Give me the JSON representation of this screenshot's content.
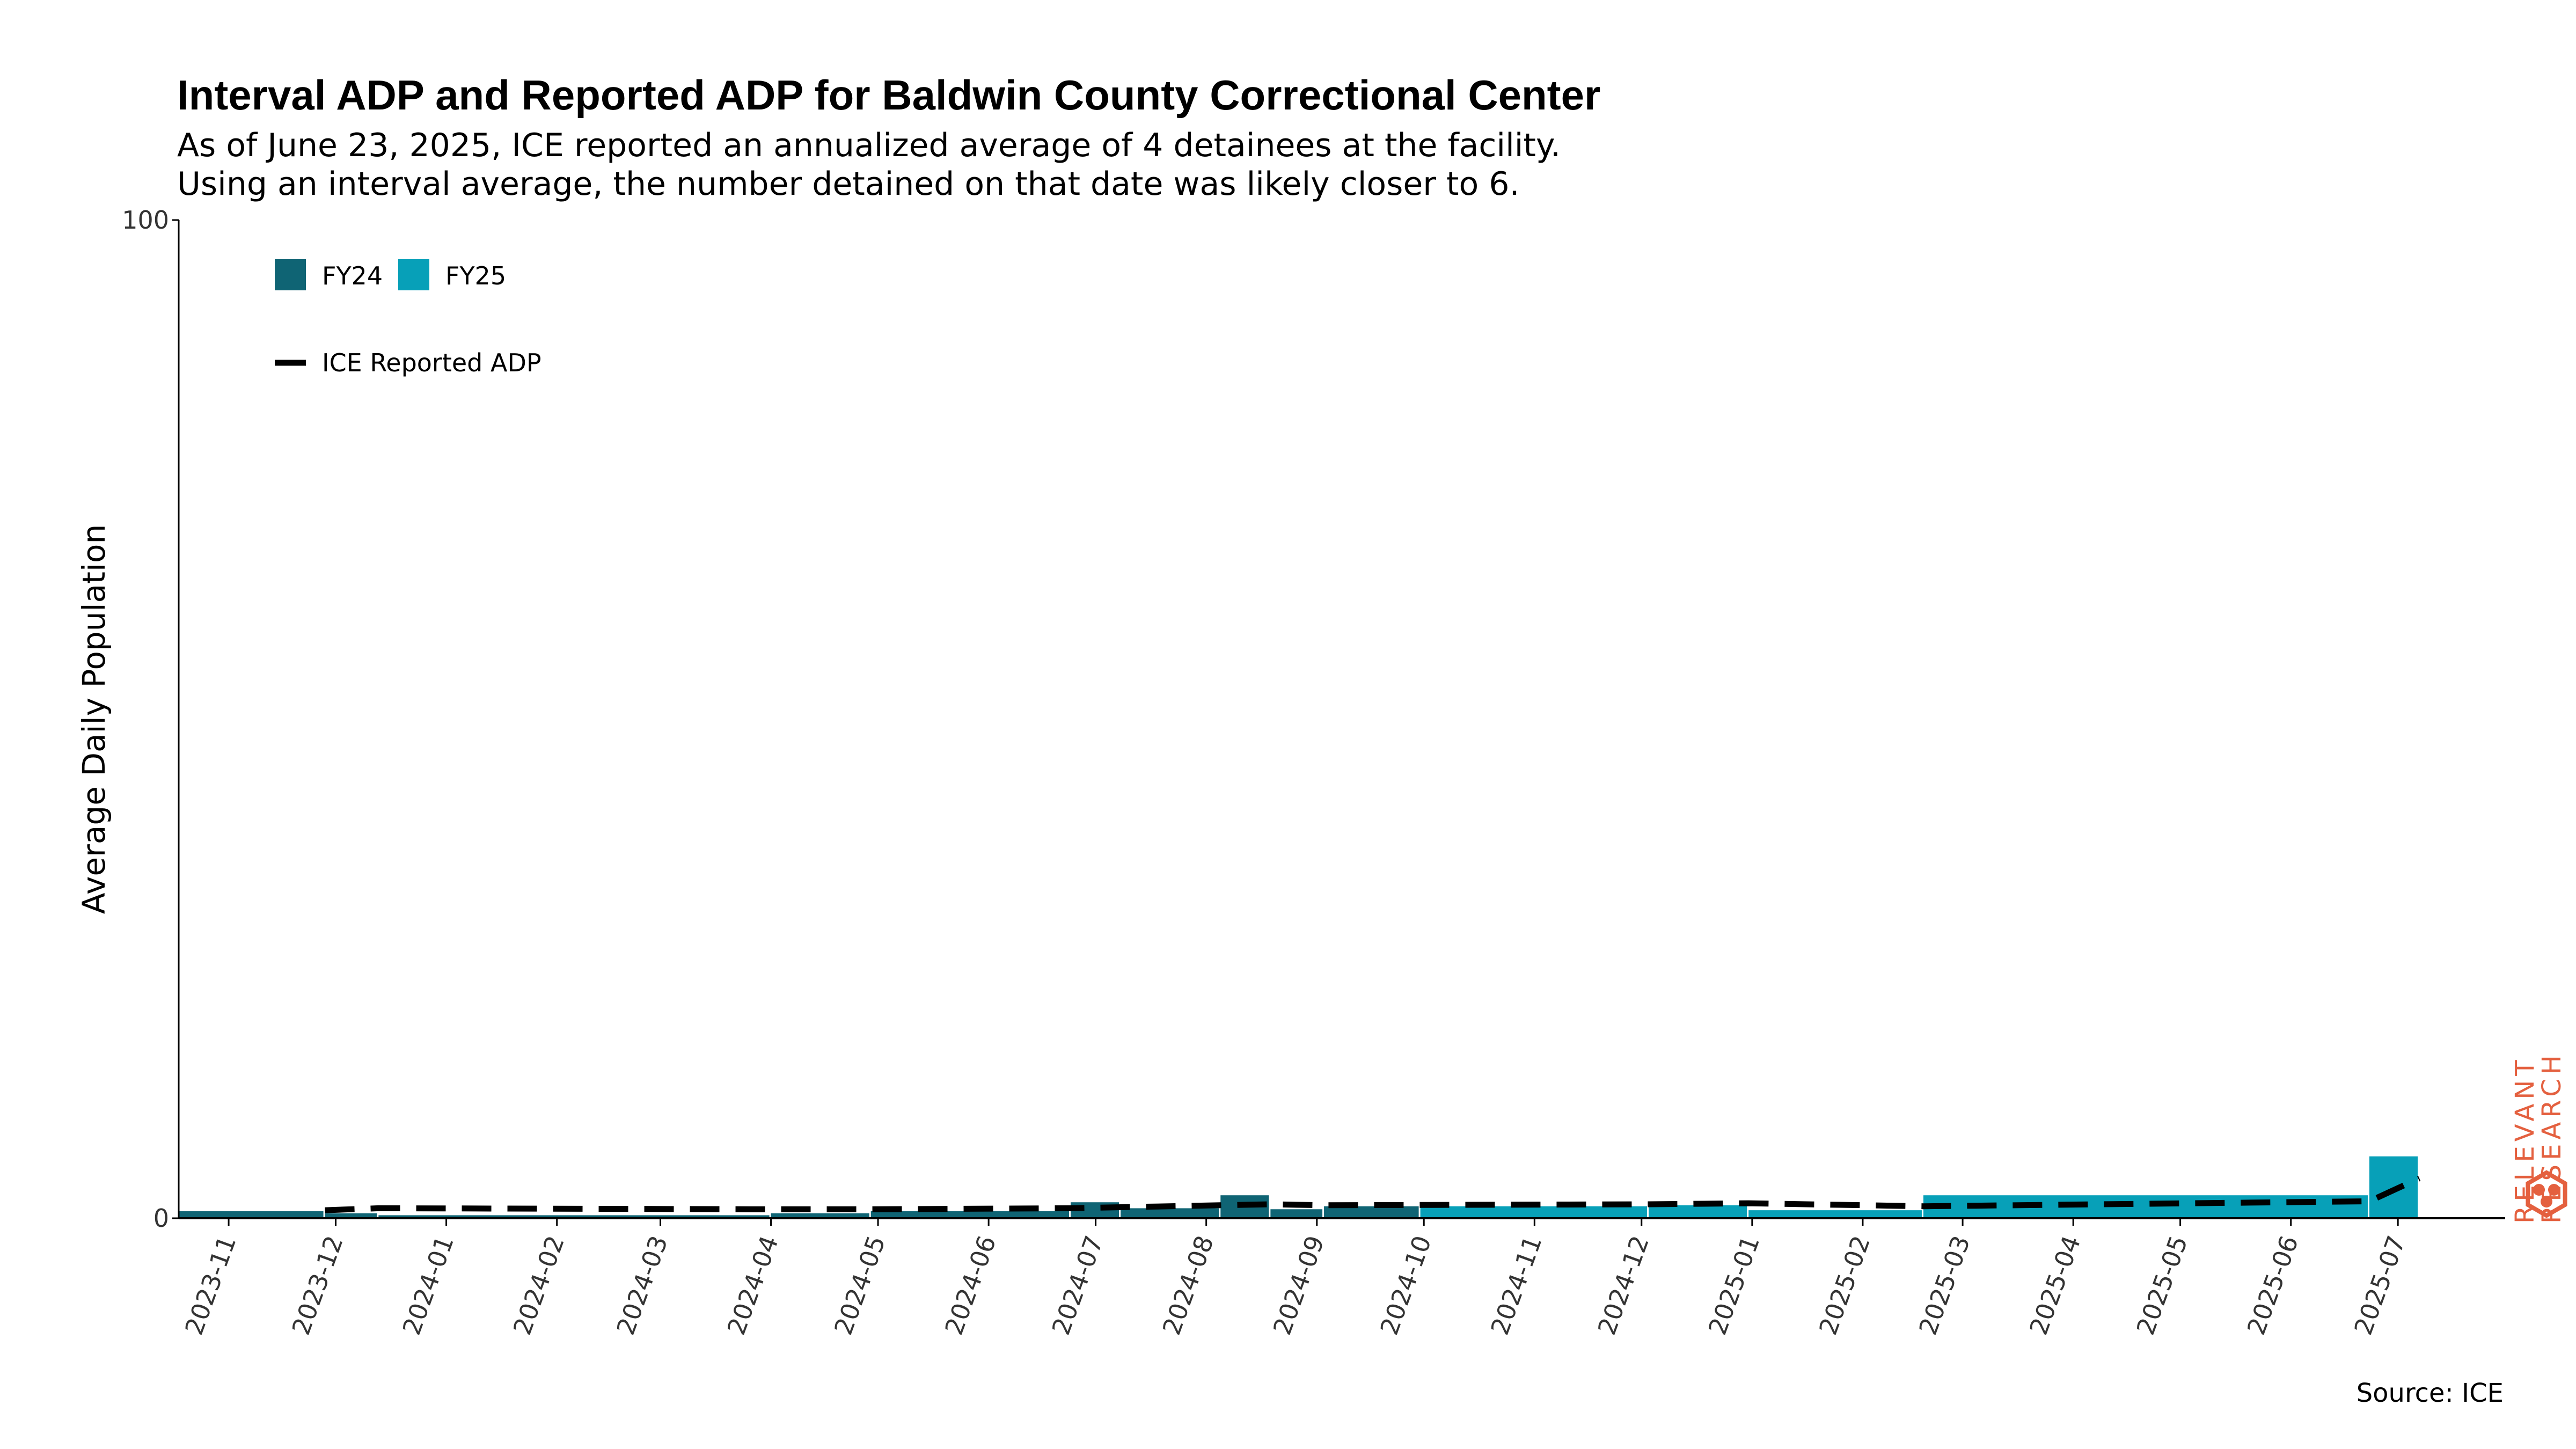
{
  "title": "Interval ADP and Reported ADP for Baldwin County Correctional Center",
  "subtitle_lines": [
    "As of June 23, 2025, ICE reported an annualized average of 4 detainees at the facility.",
    "Using an interval average, the number detained on that date was likely closer to 6."
  ],
  "source": "Source: ICE",
  "logo": {
    "line1": "RELEVANT",
    "line2": "RESEARCH",
    "color": "#e4603f"
  },
  "colors": {
    "FY24": "#0f6474",
    "FY25": "#07a0b8",
    "reported_line": "#000000",
    "axis": "#000000"
  },
  "chart_data": {
    "type": "bar",
    "ylabel": "Average Daily Population",
    "ylim": [
      0,
      100
    ],
    "y_ticks": [
      "0",
      "100"
    ],
    "x_tick_labels": [
      "2023-11",
      "2023-12",
      "2024-01",
      "2024-02",
      "2024-03",
      "2024-04",
      "2024-05",
      "2024-06",
      "2024-07",
      "2024-08",
      "2024-09",
      "2024-10",
      "2024-11",
      "2024-12",
      "2025-01",
      "2025-02",
      "2025-03",
      "2025-04",
      "2025-05",
      "2025-06",
      "2025-07"
    ],
    "x_range": [
      "2023-10-18",
      "2025-07-10"
    ],
    "legend": {
      "position": "top-left",
      "bar_entries": [
        "FY24",
        "FY25"
      ],
      "line_entry": "ICE Reported ADP"
    },
    "interval_bars": [
      {
        "start": "2023-10-18",
        "end": "2023-11-28",
        "value": 0.7,
        "fy": "FY24"
      },
      {
        "start": "2023-11-28",
        "end": "2023-12-13",
        "value": 0.5,
        "fy": "FY24"
      },
      {
        "start": "2023-12-13",
        "end": "2024-04-01",
        "value": 0.3,
        "fy": "FY24"
      },
      {
        "start": "2024-04-01",
        "end": "2024-04-29",
        "value": 0.5,
        "fy": "FY24"
      },
      {
        "start": "2024-04-29",
        "end": "2024-06-24",
        "value": 0.7,
        "fy": "FY24"
      },
      {
        "start": "2024-06-24",
        "end": "2024-07-08",
        "value": 1.6,
        "fy": "FY24"
      },
      {
        "start": "2024-07-08",
        "end": "2024-08-05",
        "value": 1.0,
        "fy": "FY24"
      },
      {
        "start": "2024-08-05",
        "end": "2024-08-19",
        "value": 2.3,
        "fy": "FY24"
      },
      {
        "start": "2024-08-19",
        "end": "2024-09-03",
        "value": 0.9,
        "fy": "FY24"
      },
      {
        "start": "2024-09-03",
        "end": "2024-09-30",
        "value": 1.2,
        "fy": "FY24"
      },
      {
        "start": "2024-09-30",
        "end": "2024-12-03",
        "value": 1.2,
        "fy": "FY25"
      },
      {
        "start": "2024-12-03",
        "end": "2024-12-31",
        "value": 1.3,
        "fy": "FY25"
      },
      {
        "start": "2024-12-31",
        "end": "2025-02-18",
        "value": 0.8,
        "fy": "FY25"
      },
      {
        "start": "2025-02-18",
        "end": "2025-06-23",
        "value": 2.3,
        "fy": "FY25"
      },
      {
        "start": "2025-06-23",
        "end": "2025-07-07",
        "value": 6.2,
        "fy": "FY25"
      }
    ],
    "reported_adp": [
      {
        "date": "2023-11-28",
        "value": 0.8
      },
      {
        "date": "2023-12-13",
        "value": 1.0
      },
      {
        "date": "2024-04-01",
        "value": 0.9
      },
      {
        "date": "2024-04-29",
        "value": 0.9
      },
      {
        "date": "2024-06-24",
        "value": 1.0
      },
      {
        "date": "2024-07-08",
        "value": 1.1
      },
      {
        "date": "2024-08-05",
        "value": 1.3
      },
      {
        "date": "2024-08-19",
        "value": 1.4
      },
      {
        "date": "2024-09-03",
        "value": 1.3
      },
      {
        "date": "2024-12-03",
        "value": 1.4
      },
      {
        "date": "2024-12-31",
        "value": 1.5
      },
      {
        "date": "2025-02-18",
        "value": 1.2
      },
      {
        "date": "2025-06-23",
        "value": 1.7
      },
      {
        "date": "2025-07-07",
        "value": 4.0
      }
    ]
  }
}
